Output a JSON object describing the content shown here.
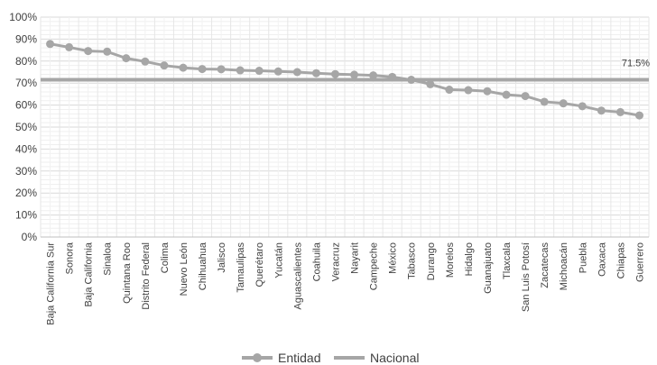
{
  "chart_data": {
    "type": "line",
    "title": "",
    "xlabel": "",
    "ylabel": "",
    "ylim": [
      0,
      100
    ],
    "y_ticks": [
      "0%",
      "10%",
      "20%",
      "30%",
      "40%",
      "50%",
      "60%",
      "70%",
      "80%",
      "90%",
      "100%"
    ],
    "grid": true,
    "legend_position": "bottom",
    "categories": [
      "Baja California Sur",
      "Sonora",
      "Baja California",
      "Sinaloa",
      "Quintana Roo",
      "Distrito Federal",
      "Colima",
      "Nuevo León",
      "Chihuahua",
      "Jalisco",
      "Tamaulipas",
      "Querétaro",
      "Yucatán",
      "Aguascalientes",
      "Coahuila",
      "Veracruz",
      "Nayarit",
      "Campeche",
      "México",
      "Tabasco",
      "Durango",
      "Morelos",
      "Hidalgo",
      "Guanajuato",
      "Tlaxcala",
      "San Luis Potosí",
      "Zacatecas",
      "Michoacán",
      "Puebla",
      "Oaxaca",
      "Chiapas",
      "Guerrero"
    ],
    "series": [
      {
        "name": "Entidad",
        "color": "#a6a6a6",
        "marker": "circle",
        "values": [
          87.8,
          86.3,
          84.6,
          84.3,
          81.3,
          79.8,
          78.0,
          77.0,
          76.4,
          76.3,
          75.8,
          75.6,
          75.3,
          75.0,
          74.5,
          74.1,
          73.8,
          73.5,
          72.8,
          71.5,
          69.5,
          67.0,
          66.8,
          66.3,
          64.7,
          64.1,
          61.5,
          60.8,
          59.5,
          57.5,
          56.8,
          55.3
        ]
      },
      {
        "name": "Nacional",
        "color": "#a6a6a6",
        "marker": "none",
        "value": 71.5,
        "value_label": "71.5%"
      }
    ]
  }
}
